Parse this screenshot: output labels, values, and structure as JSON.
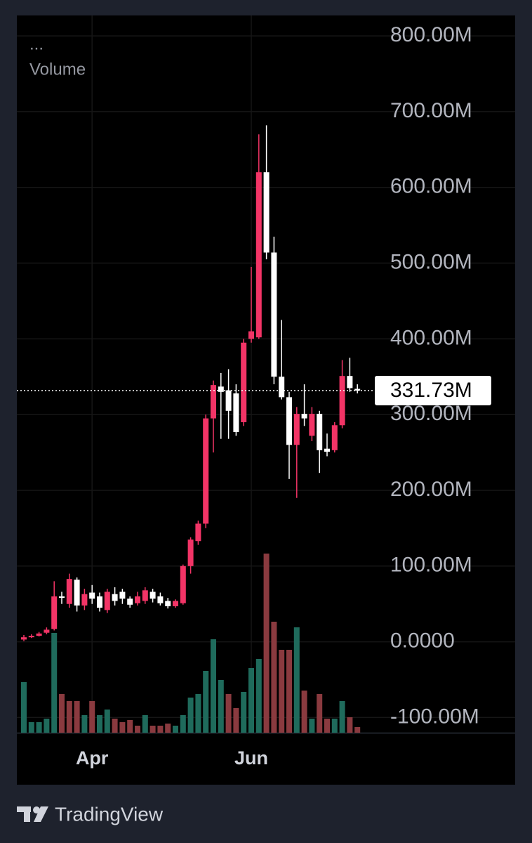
{
  "chart_data": {
    "type": "candlestick",
    "indicator_menu": "...",
    "indicator_name": "Volume",
    "categories": [
      null,
      null,
      null,
      null,
      null,
      null,
      null,
      null,
      null,
      "Apr",
      null,
      null,
      null,
      null,
      null,
      null,
      null,
      null,
      null,
      null,
      null,
      null,
      null,
      null,
      null,
      null,
      null,
      null,
      null,
      null,
      "Jun",
      null,
      null,
      null,
      null,
      null,
      null,
      null,
      null,
      null,
      null,
      null,
      null,
      null,
      null
    ],
    "open": [
      3000000,
      6000000,
      8000000,
      12000000,
      17000000,
      60000000,
      50000000,
      82000000,
      48000000,
      65000000,
      60000000,
      42000000,
      63000000,
      66000000,
      57000000,
      51000000,
      54000000,
      66000000,
      60000000,
      54000000,
      47000000,
      51000000,
      100000000,
      133000000,
      156000000,
      295000000,
      337000000,
      332000000,
      328000000,
      290000000,
      400000000,
      402000000,
      620000000,
      514000000,
      350000000,
      323000000,
      260000000,
      301000000,
      272000000,
      301000000,
      255000000,
      253000000,
      286000000,
      351000000,
      334000000
    ],
    "high": [
      9000000,
      10000000,
      13000000,
      19000000,
      80000000,
      66000000,
      90000000,
      85000000,
      70000000,
      75000000,
      65000000,
      70000000,
      72000000,
      70000000,
      60000000,
      66000000,
      72000000,
      70000000,
      65000000,
      58000000,
      56000000,
      102000000,
      138000000,
      160000000,
      300000000,
      345000000,
      355000000,
      360000000,
      340000000,
      400000000,
      495000000,
      670000000,
      682000000,
      535000000,
      425000000,
      330000000,
      310000000,
      340000000,
      310000000,
      305000000,
      275000000,
      290000000,
      372000000,
      375000000,
      340000000
    ],
    "low": [
      1000000,
      5000000,
      7000000,
      10000000,
      15000000,
      50000000,
      45000000,
      40000000,
      42000000,
      50000000,
      40000000,
      38000000,
      48000000,
      50000000,
      45000000,
      48000000,
      50000000,
      52000000,
      48000000,
      44000000,
      45000000,
      49000000,
      90000000,
      128000000,
      150000000,
      250000000,
      268000000,
      268000000,
      272000000,
      285000000,
      395000000,
      400000000,
      505000000,
      340000000,
      320000000,
      215000000,
      190000000,
      285000000,
      265000000,
      223000000,
      245000000,
      250000000,
      282000000,
      330000000,
      328000000
    ],
    "close": [
      6000000,
      8000000,
      11000000,
      16000000,
      60000000,
      58000000,
      83000000,
      48000000,
      63000000,
      57000000,
      45000000,
      66000000,
      54000000,
      57000000,
      49000000,
      60000000,
      68000000,
      57000000,
      51000000,
      47000000,
      54000000,
      100000000,
      135000000,
      156000000,
      295000000,
      339000000,
      330000000,
      305000000,
      277000000,
      395000000,
      410000000,
      620000000,
      514000000,
      350000000,
      323000000,
      260000000,
      301000000,
      295000000,
      301000000,
      253000000,
      251000000,
      286000000,
      351000000,
      335000000,
      331730000
    ],
    "up_color": "#f23466",
    "down_color": "#ffffff",
    "volume": [
      72,
      15,
      15,
      20,
      142,
      55,
      45,
      45,
      25,
      45,
      25,
      33,
      20,
      15,
      18,
      10,
      25,
      10,
      10,
      13,
      10,
      25,
      50,
      55,
      88,
      133,
      75,
      55,
      35,
      58,
      92,
      105,
      255,
      158,
      118,
      118,
      150,
      60,
      20,
      55,
      20,
      20,
      45,
      22,
      8
    ],
    "volume_colors": [
      "#1f6b5c",
      "#1f6b5c",
      "#1f6b5c",
      "#1f6b5c",
      "#1f6b5c",
      "#8a3a3f",
      "#8a3a3f",
      "#8a3a3f",
      "#1f6b5c",
      "#8a3a3f",
      "#1f6b5c",
      "#1f6b5c",
      "#8a3a3f",
      "#8a3a3f",
      "#8a3a3f",
      "#8a3a3f",
      "#1f6b5c",
      "#8a3a3f",
      "#8a3a3f",
      "#8a3a3f",
      "#1f6b5c",
      "#1f6b5c",
      "#1f6b5c",
      "#1f6b5c",
      "#1f6b5c",
      "#1f6b5c",
      "#1f6b5c",
      "#8a3a3f",
      "#8a3a3f",
      "#1f6b5c",
      "#1f6b5c",
      "#1f6b5c",
      "#8a3a3f",
      "#8a3a3f",
      "#8a3a3f",
      "#8a3a3f",
      "#1f6b5c",
      "#8a3a3f",
      "#1f6b5c",
      "#8a3a3f",
      "#8a3a3f",
      "#1f6b5c",
      "#1f6b5c",
      "#8a3a3f",
      "#8a3a3f"
    ],
    "last_price": {
      "value": 331730000,
      "label": "331.73M"
    },
    "ylim": [
      -120000000,
      827000000
    ],
    "yticks": [
      {
        "value": -100000000,
        "label": "-100.00M"
      },
      {
        "value": 0,
        "label": "0.0000"
      },
      {
        "value": 100000000,
        "label": "100.00M"
      },
      {
        "value": 200000000,
        "label": "200.00M"
      },
      {
        "value": 300000000,
        "label": "300.00M"
      },
      {
        "value": 400000000,
        "label": "400.00M"
      },
      {
        "value": 500000000,
        "label": "500.00M"
      },
      {
        "value": 600000000,
        "label": "600.00M"
      },
      {
        "value": 700000000,
        "label": "700.00M"
      },
      {
        "value": 800000000,
        "label": "800.00M"
      }
    ],
    "grid": true
  },
  "brand": "TradingView"
}
